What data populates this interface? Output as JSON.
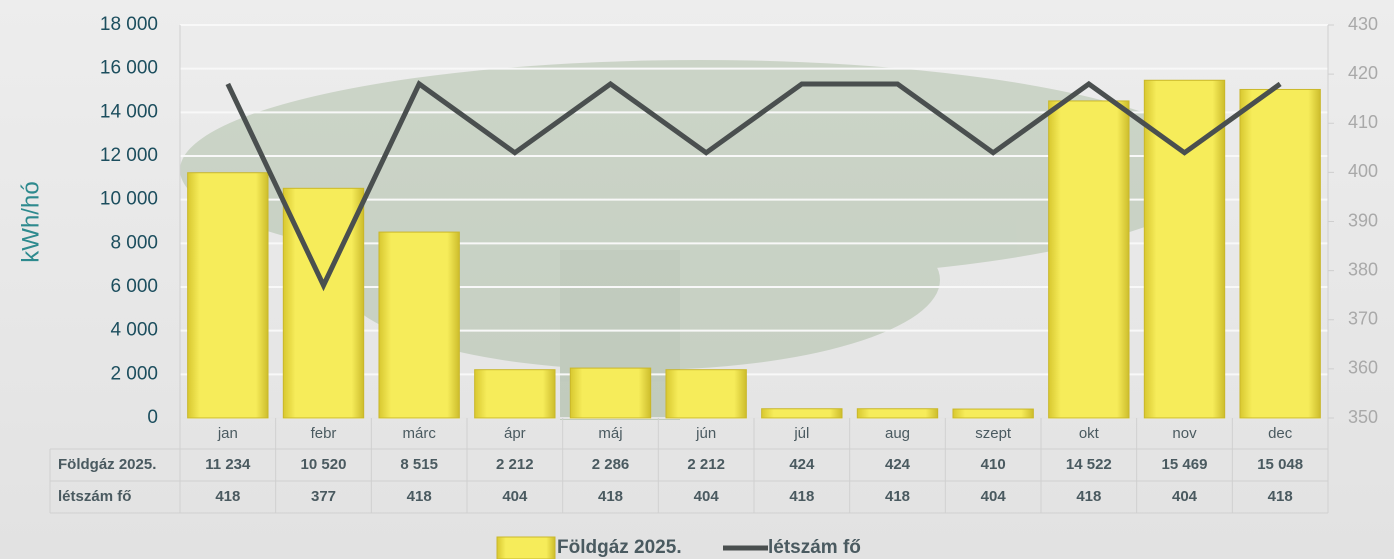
{
  "chart_data": {
    "type": "bar",
    "y_label": "kWh/hó",
    "categories": [
      "jan",
      "febr",
      "márc",
      "ápr",
      "máj",
      "jún",
      "júl",
      "aug",
      "szept",
      "okt",
      "nov",
      "dec"
    ],
    "series": [
      {
        "name": "Földgáz 2025.",
        "type": "bar",
        "color": "#f3e640",
        "values": [
          11234,
          10520,
          8515,
          2212,
          2286,
          2212,
          424,
          424,
          410,
          14522,
          15469,
          15048
        ],
        "value_labels": [
          "11 234",
          "10 520",
          "8 515",
          "2 212",
          "2 286",
          "2 212",
          "424",
          "424",
          "410",
          "14 522",
          "15 469",
          "15 048"
        ]
      },
      {
        "name": "létszám fő",
        "type": "line",
        "axis": "y2",
        "color": "#4a4f4f",
        "values": [
          418,
          377,
          418,
          404,
          418,
          404,
          418,
          418,
          404,
          418,
          404,
          418
        ]
      }
    ],
    "ylim": [
      0,
      18000
    ],
    "yticks": [
      {
        "value": 0,
        "label": "0"
      },
      {
        "value": 2000,
        "label": "2 000"
      },
      {
        "value": 4000,
        "label": "4 000"
      },
      {
        "value": 6000,
        "label": "6 000"
      },
      {
        "value": 8000,
        "label": "8 000"
      },
      {
        "value": 10000,
        "label": "10 000"
      },
      {
        "value": 12000,
        "label": "12 000"
      },
      {
        "value": 14000,
        "label": "14 000"
      },
      {
        "value": 16000,
        "label": "16 000"
      },
      {
        "value": 18000,
        "label": "18 000"
      }
    ],
    "y2lim": [
      350,
      430
    ],
    "y2ticks": [
      350,
      360,
      370,
      380,
      390,
      400,
      410,
      420,
      430
    ],
    "grid": true,
    "legend": "bottom"
  }
}
